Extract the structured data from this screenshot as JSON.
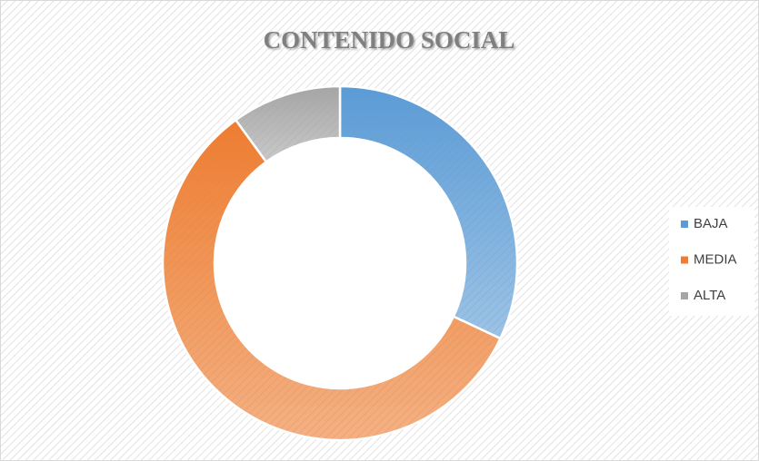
{
  "chart_data": {
    "type": "pie",
    "title": "CONTENIDO SOCIAL",
    "categories": [
      "BAJA",
      "MEDIA",
      "ALTA"
    ],
    "values": [
      32,
      58,
      10
    ],
    "colors": [
      "#5b9bd5",
      "#ed7d31",
      "#a5a5a5"
    ],
    "donut": true
  }
}
